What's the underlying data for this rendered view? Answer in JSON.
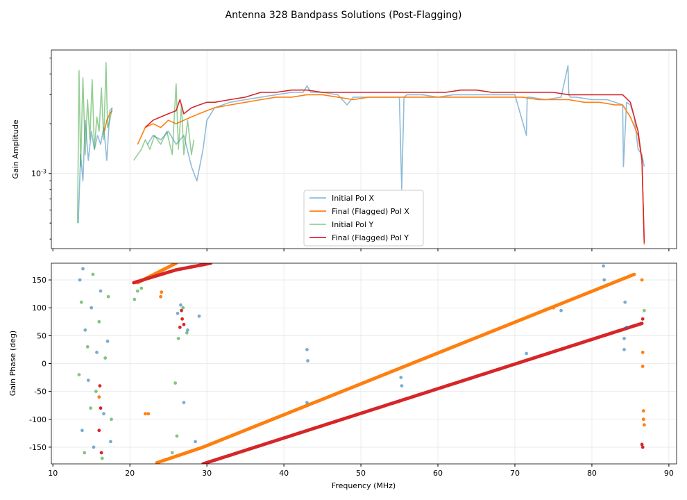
{
  "title": "Antenna 328 Bandpass Solutions (Post-Flagging)",
  "colors": {
    "initial_x": "#1f77b4",
    "final_x": "#ff7f0e",
    "initial_y": "#2ca02c",
    "final_y": "#d62728"
  },
  "chart_data": [
    {
      "type": "line",
      "title": "",
      "xlabel": "",
      "ylabel": "Gain Amplitude",
      "yscale": "log",
      "xlim": [
        9.8,
        91
      ],
      "ylim": [
        0.00035,
        0.0056
      ],
      "y_tick_labels": [
        {
          "value": 0.001,
          "label": "10^-3"
        }
      ],
      "grid": true,
      "legend": {
        "position": "lower-center",
        "entries": [
          "Initial Pol X",
          "Final (Flagged) Pol X",
          "Initial Pol Y",
          "Final (Flagged) Pol Y"
        ]
      },
      "series": [
        {
          "name": "Initial Pol X",
          "color_key": "initial_x",
          "segments": [
            {
              "x": [
                13.3,
                13.6,
                13.9,
                14.2,
                14.6,
                15.0,
                15.4,
                15.8,
                16.2,
                16.6,
                17.0,
                17.4,
                17.7
              ],
              "y": [
                0.0005,
                0.0013,
                0.0009,
                0.0021,
                0.0012,
                0.0018,
                0.0014,
                0.0017,
                0.0015,
                0.0019,
                0.0012,
                0.0024,
                0.0025
              ]
            },
            {
              "x": [
                22.3,
                23,
                24,
                25,
                26,
                27,
                28,
                28.7,
                29.5,
                30,
                31,
                33,
                35,
                37,
                39,
                41,
                42.5,
                43,
                43.5,
                45,
                47,
                48.2,
                49,
                51,
                53,
                55,
                55.3,
                55.6,
                56,
                58,
                60,
                62,
                64,
                66,
                68,
                70,
                71.5,
                71.6,
                72,
                74,
                76,
                76.9,
                77,
                77.2,
                78,
                80,
                81,
                82,
                83,
                84,
                84.1,
                84.5,
                85,
                85.5,
                86,
                86.5,
                86.8
              ],
              "y": [
                0.0015,
                0.0017,
                0.0016,
                0.0018,
                0.0015,
                0.0017,
                0.0011,
                0.0009,
                0.0014,
                0.0021,
                0.0025,
                0.0027,
                0.0028,
                0.0029,
                0.003,
                0.0031,
                0.0031,
                0.0034,
                0.0031,
                0.0031,
                0.003,
                0.0026,
                0.0029,
                0.0029,
                0.0029,
                0.0029,
                0.0008,
                0.0029,
                0.003,
                0.003,
                0.0029,
                0.003,
                0.003,
                0.003,
                0.003,
                0.003,
                0.0017,
                0.0029,
                0.0029,
                0.0028,
                0.0029,
                0.0045,
                0.003,
                0.0029,
                0.0029,
                0.0028,
                0.0028,
                0.0028,
                0.0027,
                0.0026,
                0.0011,
                0.0027,
                0.0026,
                0.0022,
                0.0014,
                0.0013,
                0.0011
              ]
            }
          ]
        },
        {
          "name": "Final (Flagged) Pol X",
          "color_key": "final_x",
          "segments": [
            {
              "x": [
                16.7,
                17.0,
                17.4,
                17.7
              ],
              "y": [
                0.0018,
                0.0021,
                0.0023,
                0.0024
              ]
            },
            {
              "x": [
                21.0,
                22,
                23,
                24,
                25,
                26,
                27,
                28,
                29,
                30,
                31,
                33,
                35,
                37,
                39,
                41,
                43,
                45,
                47,
                49,
                51,
                53,
                55,
                57,
                59,
                61,
                63,
                65,
                67,
                69,
                71,
                73,
                75,
                77,
                79,
                81,
                83,
                84,
                85,
                86,
                86.5,
                86.8
              ],
              "y": [
                0.0015,
                0.0019,
                0.002,
                0.0019,
                0.0021,
                0.002,
                0.0021,
                0.0022,
                0.0023,
                0.0024,
                0.0025,
                0.0026,
                0.0027,
                0.0028,
                0.0029,
                0.0029,
                0.003,
                0.003,
                0.0029,
                0.0028,
                0.0029,
                0.0029,
                0.0029,
                0.0029,
                0.0029,
                0.0029,
                0.0029,
                0.0029,
                0.0029,
                0.0029,
                0.0029,
                0.0028,
                0.0028,
                0.0028,
                0.0027,
                0.0027,
                0.0026,
                0.0026,
                0.0022,
                0.0017,
                0.0012,
                0.00037
              ]
            }
          ]
        },
        {
          "name": "Initial Pol Y",
          "color_key": "initial_y",
          "segments": [
            {
              "x": [
                13.2,
                13.4,
                13.6,
                13.9,
                14.2,
                14.5,
                14.8,
                15.1,
                15.4,
                15.7,
                16.0,
                16.3,
                16.6,
                16.9,
                17.1,
                17.4,
                17.7
              ],
              "y": [
                0.0005,
                0.0042,
                0.0011,
                0.0038,
                0.0013,
                0.0028,
                0.0016,
                0.0037,
                0.0014,
                0.0022,
                0.0018,
                0.0033,
                0.0016,
                0.0047,
                0.0019,
                0.0021,
                0.0025
              ]
            },
            {
              "x": [
                20.5,
                21.0,
                21.5,
                22.0,
                22.6,
                23.2,
                24.0,
                24.8,
                25.5,
                26.0,
                26.3,
                26.7,
                27.0,
                27.5,
                28.0,
                28.3
              ],
              "y": [
                0.0012,
                0.0013,
                0.0014,
                0.0016,
                0.0014,
                0.0017,
                0.0015,
                0.0018,
                0.0013,
                0.0035,
                0.0014,
                0.0026,
                0.0013,
                0.0021,
                0.0013,
                0.0016
              ]
            }
          ]
        },
        {
          "name": "Final (Flagged) Pol Y",
          "color_key": "final_y",
          "segments": [
            {
              "x": [
                22.0,
                23,
                24,
                25,
                26,
                26.5,
                27,
                28,
                29,
                30,
                31,
                33,
                35,
                37,
                39,
                41,
                43,
                45,
                47,
                49,
                51,
                53,
                55,
                57,
                59,
                61,
                63,
                65,
                67,
                69,
                71,
                73,
                75,
                77,
                79,
                81,
                83,
                84,
                85,
                86,
                86.5,
                86.8
              ],
              "y": [
                0.0019,
                0.0021,
                0.0022,
                0.0023,
                0.0024,
                0.0028,
                0.0023,
                0.0025,
                0.0026,
                0.0027,
                0.0027,
                0.0028,
                0.0029,
                0.0031,
                0.0031,
                0.0032,
                0.0032,
                0.0031,
                0.0031,
                0.0031,
                0.0031,
                0.0031,
                0.0031,
                0.0031,
                0.0031,
                0.0031,
                0.0032,
                0.0032,
                0.0031,
                0.0031,
                0.0031,
                0.0031,
                0.0031,
                0.003,
                0.003,
                0.003,
                0.003,
                0.003,
                0.0027,
                0.0018,
                0.0012,
                0.00038
              ]
            }
          ]
        }
      ]
    },
    {
      "type": "scatter",
      "title": "",
      "xlabel": "Frequency (MHz)",
      "ylabel": "Gain Phase (deg)",
      "xlim": [
        9.8,
        91
      ],
      "ylim": [
        -180,
        180
      ],
      "x_ticks": [
        10,
        20,
        30,
        40,
        50,
        60,
        70,
        80,
        90
      ],
      "y_ticks": [
        -150,
        -100,
        -50,
        0,
        50,
        100,
        150
      ],
      "grid": true,
      "series": [
        {
          "name": "Final (Flagged) Pol X",
          "color_key": "final_x",
          "ramps": [
            {
              "x0": 23.5,
              "y0": -178,
              "x1": 29.5,
              "y1": -150
            },
            {
              "x0": 29.5,
              "y0": -150,
              "x1": 85.5,
              "y1": 160
            },
            {
              "x0": 21.0,
              "y0": 145,
              "x1": 26.0,
              "y1": 180
            }
          ],
          "points": [
            {
              "x": 22.0,
              "y": -90
            },
            {
              "x": 22.4,
              "y": -90
            },
            {
              "x": 24.0,
              "y": 120
            },
            {
              "x": 24.1,
              "y": 128
            },
            {
              "x": 75.0,
              "y": 100
            },
            {
              "x": 86.6,
              "y": -5
            },
            {
              "x": 86.6,
              "y": 20
            },
            {
              "x": 86.7,
              "y": -85
            },
            {
              "x": 86.7,
              "y": -100
            },
            {
              "x": 86.8,
              "y": -110
            },
            {
              "x": 86.5,
              "y": 150
            },
            {
              "x": 16.0,
              "y": -60
            }
          ]
        },
        {
          "name": "Final (Flagged) Pol Y",
          "color_key": "final_y",
          "ramps": [
            {
              "x0": 20.5,
              "y0": 145,
              "x1": 26.0,
              "y1": 168
            },
            {
              "x0": 26.0,
              "y0": 168,
              "x1": 30.5,
              "y1": 180
            },
            {
              "x0": 29.5,
              "y0": -180,
              "x1": 86.5,
              "y1": 72
            }
          ],
          "points": [
            {
              "x": 16.0,
              "y": -120
            },
            {
              "x": 16.2,
              "y": -80
            },
            {
              "x": 16.1,
              "y": -40
            },
            {
              "x": 16.3,
              "y": -160
            },
            {
              "x": 26.5,
              "y": 65
            },
            {
              "x": 26.8,
              "y": 80
            },
            {
              "x": 27.0,
              "y": 70
            },
            {
              "x": 26.7,
              "y": 95
            },
            {
              "x": 86.5,
              "y": -145
            },
            {
              "x": 86.6,
              "y": -150
            },
            {
              "x": 86.6,
              "y": 80
            }
          ]
        },
        {
          "name": "Initial Pol X",
          "color_key": "initial_x",
          "points": [
            {
              "x": 13.5,
              "y": 150
            },
            {
              "x": 13.8,
              "y": -120
            },
            {
              "x": 14.2,
              "y": 60
            },
            {
              "x": 14.6,
              "y": -30
            },
            {
              "x": 15.0,
              "y": 100
            },
            {
              "x": 15.3,
              "y": -150
            },
            {
              "x": 15.7,
              "y": 20
            },
            {
              "x": 16.2,
              "y": 130
            },
            {
              "x": 16.6,
              "y": -90
            },
            {
              "x": 17.1,
              "y": 40
            },
            {
              "x": 17.5,
              "y": -140
            },
            {
              "x": 13.9,
              "y": 170
            },
            {
              "x": 26.2,
              "y": 90
            },
            {
              "x": 26.6,
              "y": 105
            },
            {
              "x": 27.0,
              "y": -70
            },
            {
              "x": 27.5,
              "y": 60
            },
            {
              "x": 28.5,
              "y": -140
            },
            {
              "x": 29.0,
              "y": 85
            },
            {
              "x": 43.0,
              "y": 25
            },
            {
              "x": 43.1,
              "y": 5
            },
            {
              "x": 43.0,
              "y": -70
            },
            {
              "x": 55.2,
              "y": -25
            },
            {
              "x": 55.3,
              "y": -40
            },
            {
              "x": 71.5,
              "y": 18
            },
            {
              "x": 76.0,
              "y": 95
            },
            {
              "x": 81.5,
              "y": 175
            },
            {
              "x": 81.6,
              "y": 150
            },
            {
              "x": 84.2,
              "y": 25
            },
            {
              "x": 84.2,
              "y": 45
            },
            {
              "x": 84.3,
              "y": 110
            },
            {
              "x": 84.5,
              "y": 65
            }
          ]
        },
        {
          "name": "Initial Pol Y",
          "color_key": "initial_y",
          "points": [
            {
              "x": 13.4,
              "y": -20
            },
            {
              "x": 13.7,
              "y": 110
            },
            {
              "x": 14.1,
              "y": -160
            },
            {
              "x": 14.5,
              "y": 30
            },
            {
              "x": 14.9,
              "y": -80
            },
            {
              "x": 15.2,
              "y": 160
            },
            {
              "x": 15.6,
              "y": -50
            },
            {
              "x": 16.0,
              "y": 75
            },
            {
              "x": 16.4,
              "y": -170
            },
            {
              "x": 16.8,
              "y": 10
            },
            {
              "x": 17.2,
              "y": 120
            },
            {
              "x": 17.6,
              "y": -100
            },
            {
              "x": 20.6,
              "y": 115
            },
            {
              "x": 21.0,
              "y": 130
            },
            {
              "x": 21.5,
              "y": 135
            },
            {
              "x": 25.9,
              "y": -35
            },
            {
              "x": 26.3,
              "y": 45
            },
            {
              "x": 26.9,
              "y": 100
            },
            {
              "x": 27.4,
              "y": 55
            },
            {
              "x": 25.5,
              "y": -160
            },
            {
              "x": 26.1,
              "y": -130
            },
            {
              "x": 86.8,
              "y": 95
            }
          ]
        }
      ]
    }
  ]
}
